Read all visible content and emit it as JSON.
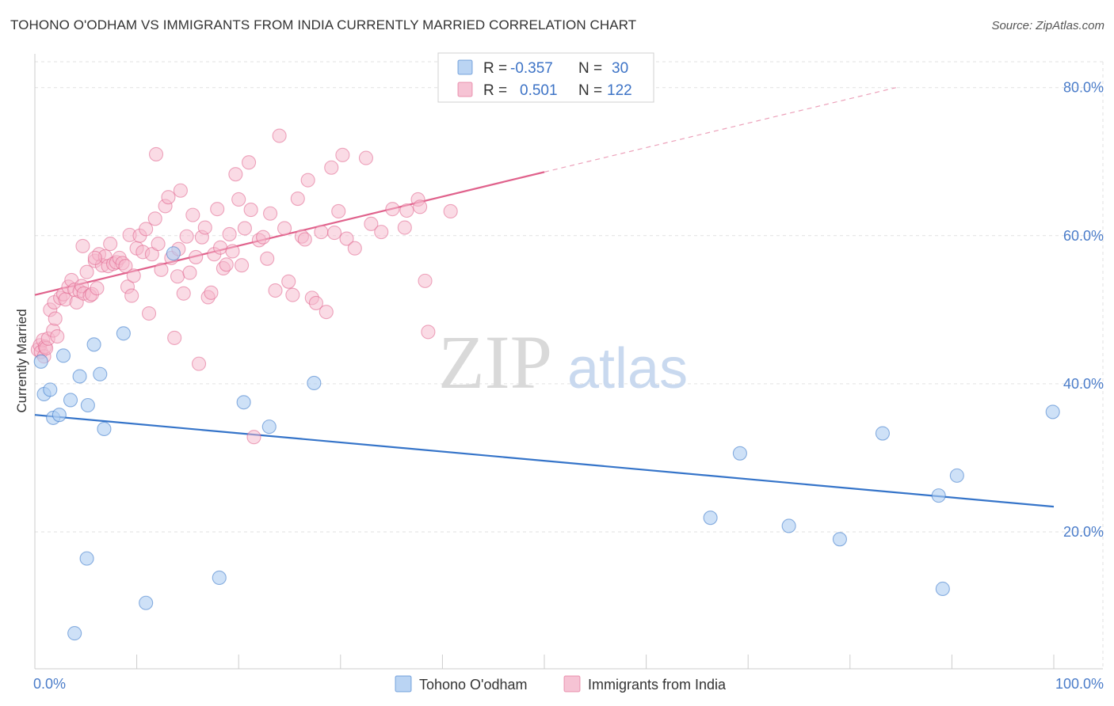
{
  "title": "TOHONO O'ODHAM VS IMMIGRANTS FROM INDIA CURRENTLY MARRIED CORRELATION CHART",
  "source": "Source: ZipAtlas.com",
  "watermark": {
    "zip": "ZIP",
    "atlas": "atlas"
  },
  "colors": {
    "blue": "#3574c9",
    "blue_fill": "#aecdf1",
    "pink": "#e0628c",
    "pink_fill": "#f5b8cc",
    "tick_label": "#4a7cc9",
    "grid": "#e2e2e2"
  },
  "legend": {
    "r_label": "R =",
    "n_label": "N =",
    "series": [
      {
        "r": "-0.357",
        "n": "30"
      },
      {
        "r": "0.501",
        "n": "122"
      }
    ]
  },
  "chart_data": {
    "type": "scatter",
    "title": "TOHONO O'ODHAM VS IMMIGRANTS FROM INDIA CURRENTLY MARRIED CORRELATION CHART",
    "xlabel": "",
    "ylabel": "Currently Married",
    "xlim": [
      0,
      100
    ],
    "ylim": [
      1.5,
      83.5
    ],
    "x_tick_labels": [
      "0.0%",
      "100.0%"
    ],
    "y_ticks": [
      20,
      40,
      60,
      80
    ],
    "y_tick_labels": [
      "20.0%",
      "40.0%",
      "60.0%",
      "80.0%"
    ],
    "grid": true,
    "legend_position": "top-center",
    "series": [
      {
        "name": "Tohono O'odham",
        "r": -0.357,
        "n": 30,
        "trend": {
          "x": [
            0,
            100
          ],
          "y": [
            35.8,
            23.4
          ],
          "dashed_to": null
        },
        "points": [
          {
            "x": 0.6,
            "y": 43.0
          },
          {
            "x": 0.9,
            "y": 38.6
          },
          {
            "x": 1.5,
            "y": 39.2
          },
          {
            "x": 1.8,
            "y": 35.4
          },
          {
            "x": 2.4,
            "y": 35.8
          },
          {
            "x": 2.8,
            "y": 43.8
          },
          {
            "x": 3.5,
            "y": 37.8
          },
          {
            "x": 4.4,
            "y": 41.0
          },
          {
            "x": 5.2,
            "y": 37.1
          },
          {
            "x": 5.8,
            "y": 45.3
          },
          {
            "x": 6.4,
            "y": 41.3
          },
          {
            "x": 6.8,
            "y": 33.9
          },
          {
            "x": 8.7,
            "y": 46.8
          },
          {
            "x": 13.6,
            "y": 57.6
          },
          {
            "x": 20.5,
            "y": 37.5
          },
          {
            "x": 23.0,
            "y": 34.2
          },
          {
            "x": 27.4,
            "y": 40.1
          },
          {
            "x": 5.1,
            "y": 16.4
          },
          {
            "x": 3.9,
            "y": 6.3
          },
          {
            "x": 10.9,
            "y": 10.4
          },
          {
            "x": 18.1,
            "y": 13.8
          },
          {
            "x": 69.2,
            "y": 30.6
          },
          {
            "x": 66.3,
            "y": 21.9
          },
          {
            "x": 74.0,
            "y": 20.8
          },
          {
            "x": 79.0,
            "y": 19.0
          },
          {
            "x": 83.2,
            "y": 33.3
          },
          {
            "x": 88.7,
            "y": 24.9
          },
          {
            "x": 90.5,
            "y": 27.6
          },
          {
            "x": 89.1,
            "y": 12.3
          },
          {
            "x": 99.9,
            "y": 36.2
          }
        ]
      },
      {
        "name": "Immigrants from India",
        "r": 0.501,
        "n": 122,
        "trend": {
          "x": [
            0,
            50
          ],
          "y": [
            52.0,
            68.6
          ],
          "dashed_to": {
            "x": 84.5,
            "y": 80.0
          }
        },
        "points": [
          {
            "x": 0.3,
            "y": 44.6
          },
          {
            "x": 0.5,
            "y": 45.2
          },
          {
            "x": 0.6,
            "y": 44.3
          },
          {
            "x": 0.8,
            "y": 45.9
          },
          {
            "x": 0.9,
            "y": 43.7
          },
          {
            "x": 1.0,
            "y": 45.0
          },
          {
            "x": 1.1,
            "y": 44.8
          },
          {
            "x": 1.3,
            "y": 46.1
          },
          {
            "x": 1.5,
            "y": 50.0
          },
          {
            "x": 1.8,
            "y": 47.2
          },
          {
            "x": 2.0,
            "y": 48.8
          },
          {
            "x": 2.2,
            "y": 46.4
          },
          {
            "x": 1.9,
            "y": 51.0
          },
          {
            "x": 2.5,
            "y": 51.6
          },
          {
            "x": 2.8,
            "y": 52.1
          },
          {
            "x": 3.0,
            "y": 51.4
          },
          {
            "x": 3.3,
            "y": 53.1
          },
          {
            "x": 3.6,
            "y": 54.0
          },
          {
            "x": 3.9,
            "y": 52.7
          },
          {
            "x": 4.1,
            "y": 51.0
          },
          {
            "x": 4.4,
            "y": 52.5
          },
          {
            "x": 4.6,
            "y": 53.2
          },
          {
            "x": 4.8,
            "y": 52.2
          },
          {
            "x": 5.1,
            "y": 55.1
          },
          {
            "x": 5.4,
            "y": 51.9
          },
          {
            "x": 5.6,
            "y": 52.1
          },
          {
            "x": 5.9,
            "y": 56.6
          },
          {
            "x": 6.1,
            "y": 52.9
          },
          {
            "x": 6.3,
            "y": 57.5
          },
          {
            "x": 6.6,
            "y": 56.0
          },
          {
            "x": 6.9,
            "y": 57.2
          },
          {
            "x": 7.2,
            "y": 55.9
          },
          {
            "x": 4.7,
            "y": 58.6
          },
          {
            "x": 7.4,
            "y": 58.9
          },
          {
            "x": 7.7,
            "y": 56.2
          },
          {
            "x": 8.0,
            "y": 56.4
          },
          {
            "x": 8.3,
            "y": 57.0
          },
          {
            "x": 8.6,
            "y": 56.3
          },
          {
            "x": 8.9,
            "y": 55.9
          },
          {
            "x": 9.1,
            "y": 53.1
          },
          {
            "x": 9.3,
            "y": 60.1
          },
          {
            "x": 9.5,
            "y": 51.9
          },
          {
            "x": 9.7,
            "y": 54.6
          },
          {
            "x": 10.0,
            "y": 58.3
          },
          {
            "x": 10.3,
            "y": 60.0
          },
          {
            "x": 10.6,
            "y": 57.8
          },
          {
            "x": 10.9,
            "y": 60.9
          },
          {
            "x": 11.2,
            "y": 49.5
          },
          {
            "x": 11.5,
            "y": 57.5
          },
          {
            "x": 11.8,
            "y": 62.3
          },
          {
            "x": 12.1,
            "y": 58.9
          },
          {
            "x": 12.4,
            "y": 55.4
          },
          {
            "x": 12.8,
            "y": 64.0
          },
          {
            "x": 13.1,
            "y": 65.2
          },
          {
            "x": 13.4,
            "y": 57.0
          },
          {
            "x": 13.7,
            "y": 46.2
          },
          {
            "x": 14.0,
            "y": 54.5
          },
          {
            "x": 14.3,
            "y": 66.1
          },
          {
            "x": 14.6,
            "y": 52.2
          },
          {
            "x": 14.9,
            "y": 59.9
          },
          {
            "x": 15.2,
            "y": 55.0
          },
          {
            "x": 15.5,
            "y": 62.8
          },
          {
            "x": 15.8,
            "y": 57.1
          },
          {
            "x": 16.1,
            "y": 42.7
          },
          {
            "x": 16.4,
            "y": 59.8
          },
          {
            "x": 16.7,
            "y": 61.1
          },
          {
            "x": 17.0,
            "y": 51.7
          },
          {
            "x": 17.3,
            "y": 52.3
          },
          {
            "x": 17.6,
            "y": 57.5
          },
          {
            "x": 17.9,
            "y": 63.6
          },
          {
            "x": 18.2,
            "y": 58.4
          },
          {
            "x": 18.5,
            "y": 55.6
          },
          {
            "x": 18.8,
            "y": 56.1
          },
          {
            "x": 19.1,
            "y": 60.2
          },
          {
            "x": 19.4,
            "y": 57.9
          },
          {
            "x": 19.7,
            "y": 68.3
          },
          {
            "x": 20.0,
            "y": 64.9
          },
          {
            "x": 20.3,
            "y": 56.0
          },
          {
            "x": 20.6,
            "y": 61.0
          },
          {
            "x": 21.0,
            "y": 69.9
          },
          {
            "x": 21.2,
            "y": 63.5
          },
          {
            "x": 21.5,
            "y": 32.8
          },
          {
            "x": 22.0,
            "y": 59.4
          },
          {
            "x": 22.4,
            "y": 59.8
          },
          {
            "x": 22.8,
            "y": 56.9
          },
          {
            "x": 23.1,
            "y": 63.0
          },
          {
            "x": 23.6,
            "y": 52.6
          },
          {
            "x": 24.0,
            "y": 73.5
          },
          {
            "x": 24.5,
            "y": 61.0
          },
          {
            "x": 24.9,
            "y": 53.8
          },
          {
            "x": 25.3,
            "y": 52.0
          },
          {
            "x": 25.8,
            "y": 65.0
          },
          {
            "x": 26.2,
            "y": 59.9
          },
          {
            "x": 26.5,
            "y": 59.5
          },
          {
            "x": 26.8,
            "y": 67.5
          },
          {
            "x": 27.2,
            "y": 51.6
          },
          {
            "x": 27.6,
            "y": 50.9
          },
          {
            "x": 28.1,
            "y": 60.5
          },
          {
            "x": 28.6,
            "y": 49.7
          },
          {
            "x": 29.1,
            "y": 69.2
          },
          {
            "x": 29.4,
            "y": 60.4
          },
          {
            "x": 29.8,
            "y": 63.3
          },
          {
            "x": 30.2,
            "y": 70.9
          },
          {
            "x": 30.6,
            "y": 59.6
          },
          {
            "x": 31.4,
            "y": 58.3
          },
          {
            "x": 32.5,
            "y": 70.5
          },
          {
            "x": 33.0,
            "y": 61.6
          },
          {
            "x": 34.0,
            "y": 60.5
          },
          {
            "x": 35.1,
            "y": 63.6
          },
          {
            "x": 36.3,
            "y": 61.1
          },
          {
            "x": 37.6,
            "y": 64.9
          },
          {
            "x": 36.5,
            "y": 63.4
          },
          {
            "x": 37.8,
            "y": 63.9
          },
          {
            "x": 38.3,
            "y": 53.9
          },
          {
            "x": 38.6,
            "y": 47.0
          },
          {
            "x": 40.8,
            "y": 63.3
          },
          {
            "x": 11.9,
            "y": 71.0
          },
          {
            "x": 14.1,
            "y": 58.2
          },
          {
            "x": 5.9,
            "y": 57.0
          }
        ]
      }
    ]
  }
}
